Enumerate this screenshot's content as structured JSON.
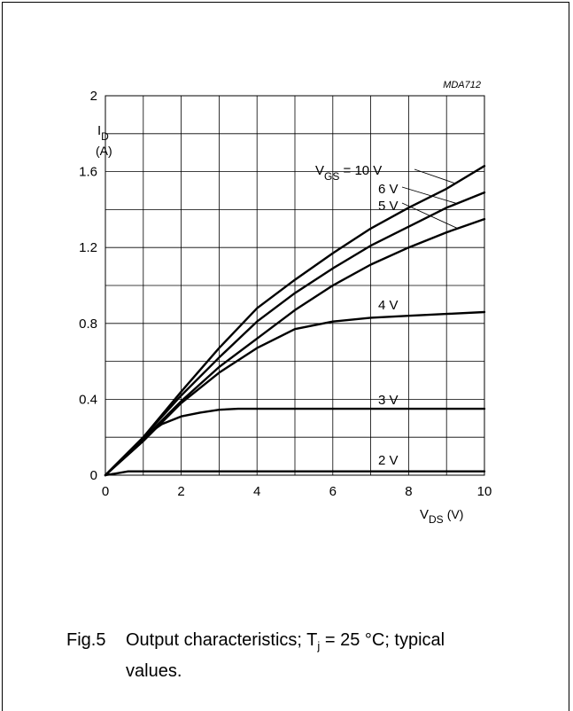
{
  "chart_data": {
    "type": "line",
    "code": "MDA712",
    "xlabel": {
      "main": "V",
      "sub": "DS",
      "unit": "(V)"
    },
    "ylabel": {
      "main": "I",
      "sub": "D",
      "unit": "(A)"
    },
    "xlim": [
      0,
      10
    ],
    "ylim": [
      0,
      2
    ],
    "x_ticks": [
      "0",
      "2",
      "4",
      "6",
      "8",
      "10"
    ],
    "y_ticks": [
      "0",
      "0.4",
      "0.8",
      "1.2",
      "1.6",
      "2"
    ],
    "grid": true,
    "series": [
      {
        "name": "V_GS = 10 V",
        "label_main": "V",
        "label_sub": "GS",
        "label_rest": " = 10 V",
        "points": [
          [
            0,
            0
          ],
          [
            1,
            0.2
          ],
          [
            2,
            0.44
          ],
          [
            3,
            0.67
          ],
          [
            4,
            0.88
          ],
          [
            5,
            1.03
          ],
          [
            6,
            1.17
          ],
          [
            7,
            1.3
          ],
          [
            8,
            1.41
          ],
          [
            9,
            1.51
          ],
          [
            10,
            1.63
          ]
        ]
      },
      {
        "name": "6 V",
        "label_rest": "6 V",
        "points": [
          [
            0,
            0
          ],
          [
            1,
            0.2
          ],
          [
            2,
            0.42
          ],
          [
            3,
            0.62
          ],
          [
            4,
            0.81
          ],
          [
            5,
            0.96
          ],
          [
            6,
            1.09
          ],
          [
            7,
            1.21
          ],
          [
            8,
            1.31
          ],
          [
            9,
            1.41
          ],
          [
            10,
            1.49
          ]
        ]
      },
      {
        "name": "5 V",
        "label_rest": "5 V",
        "points": [
          [
            0,
            0
          ],
          [
            1,
            0.19
          ],
          [
            2,
            0.39
          ],
          [
            3,
            0.57
          ],
          [
            4,
            0.72
          ],
          [
            5,
            0.87
          ],
          [
            6,
            1.0
          ],
          [
            7,
            1.11
          ],
          [
            8,
            1.2
          ],
          [
            9,
            1.28
          ],
          [
            10,
            1.35
          ]
        ]
      },
      {
        "name": "4 V",
        "label_rest": "4 V",
        "points": [
          [
            0,
            0
          ],
          [
            1,
            0.18
          ],
          [
            2,
            0.38
          ],
          [
            3,
            0.54
          ],
          [
            4,
            0.67
          ],
          [
            5,
            0.77
          ],
          [
            6,
            0.81
          ],
          [
            7,
            0.83
          ],
          [
            8,
            0.84
          ],
          [
            9,
            0.85
          ],
          [
            10,
            0.86
          ]
        ]
      },
      {
        "name": "3 V",
        "label_rest": "3 V",
        "points": [
          [
            0,
            0
          ],
          [
            0.5,
            0.1
          ],
          [
            1,
            0.2
          ],
          [
            1.5,
            0.27
          ],
          [
            2,
            0.31
          ],
          [
            2.5,
            0.33
          ],
          [
            3,
            0.345
          ],
          [
            3.5,
            0.35
          ],
          [
            5,
            0.35
          ],
          [
            10,
            0.35
          ]
        ]
      },
      {
        "name": "2 V",
        "label_rest": "2 V",
        "points": [
          [
            0,
            0
          ],
          [
            0.3,
            0.01
          ],
          [
            0.6,
            0.02
          ],
          [
            2,
            0.02
          ],
          [
            10,
            0.02
          ]
        ]
      }
    ]
  },
  "caption": {
    "fig": "Fig.5",
    "text_a": "Output characteristics; T",
    "text_sub": "j",
    "text_b": " = 25 °C; typical",
    "text_line2": "values."
  }
}
